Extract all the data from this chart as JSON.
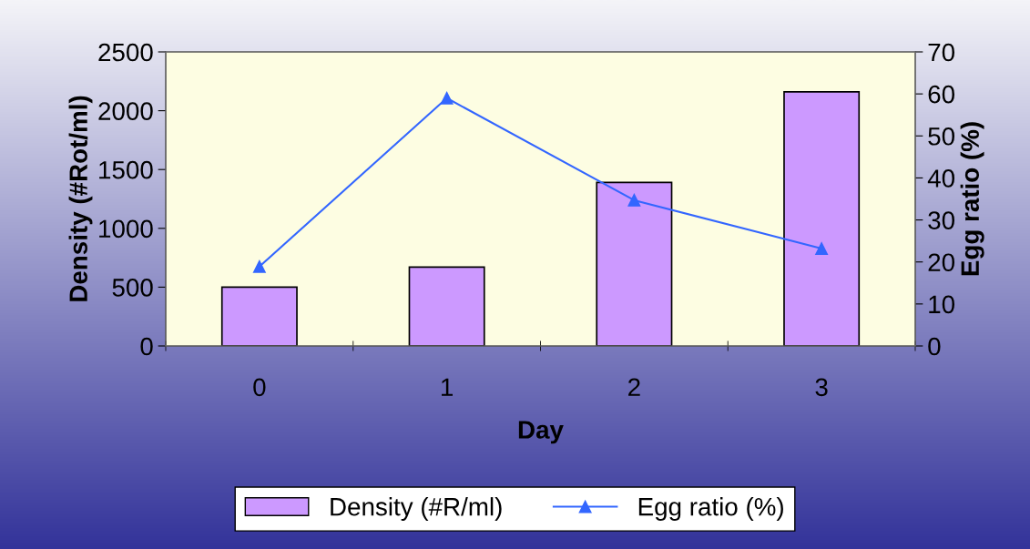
{
  "chart_data": {
    "type": "bar",
    "categories": [
      "0",
      "1",
      "2",
      "3"
    ],
    "xlabel": "Day",
    "ylabel": "Density (#Rot/ml)",
    "y2label": "Egg ratio (%)",
    "series": [
      {
        "name": "Density (#R/ml)",
        "color": "#cc99ff",
        "values": [
          500,
          670,
          1390,
          2160
        ]
      },
      {
        "name": "Egg ratio (%)",
        "type": "line",
        "color": "#3366ff",
        "axis": "y2",
        "values": [
          18.9,
          59,
          34.7,
          23.2
        ]
      }
    ],
    "ylim": [
      0,
      2500
    ],
    "yticks": [
      0,
      500,
      1000,
      1500,
      2000,
      2500
    ],
    "y2lim": [
      0,
      70
    ],
    "y2ticks": [
      0,
      10,
      20,
      30,
      40,
      50,
      60,
      70
    ],
    "marker": "triangle",
    "line_style": "solid",
    "grid": false,
    "legend": "bottom"
  }
}
